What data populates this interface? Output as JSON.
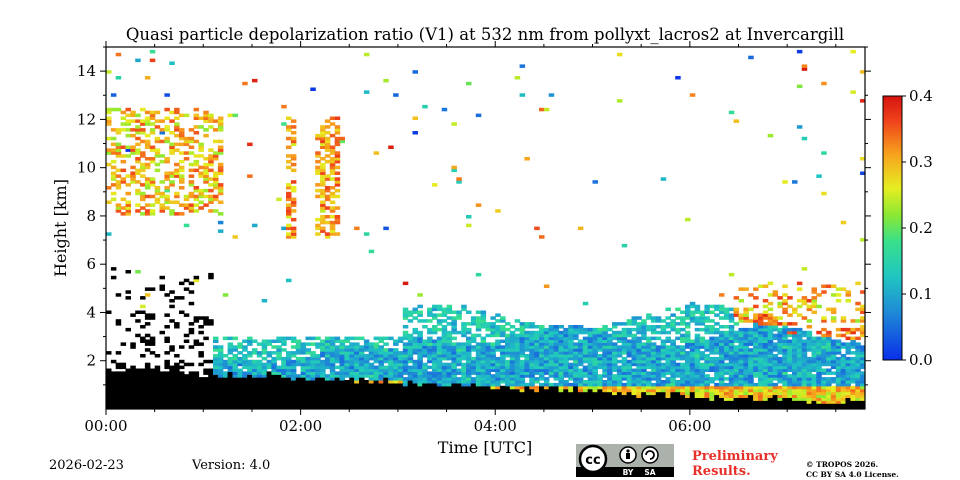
{
  "chart_data": {
    "type": "heatmap",
    "title": "Quasi particle depolarization ratio (V1) at 532 nm from pollyxt_lacros2 at Invercargill",
    "xlabel": "Time [UTC]",
    "ylabel": "Height [km]",
    "xlim_hours": [
      0,
      7.8
    ],
    "ylim_km": [
      0,
      15
    ],
    "x_ticks": [
      {
        "value": 0,
        "label": "00:00"
      },
      {
        "value": 2,
        "label": "02:00"
      },
      {
        "value": 4,
        "label": "04:00"
      },
      {
        "value": 6,
        "label": "06:00"
      }
    ],
    "y_ticks": [
      {
        "value": 2,
        "label": "2"
      },
      {
        "value": 4,
        "label": "4"
      },
      {
        "value": 6,
        "label": "6"
      },
      {
        "value": 8,
        "label": "8"
      },
      {
        "value": 10,
        "label": "10"
      },
      {
        "value": 12,
        "label": "12"
      },
      {
        "value": 14,
        "label": "14"
      }
    ],
    "colorbar": {
      "min": 0.0,
      "max": 0.4,
      "ticks": [
        {
          "value": 0.0,
          "label": "0.0"
        },
        {
          "value": 0.1,
          "label": "0.1"
        },
        {
          "value": 0.2,
          "label": "0.2"
        },
        {
          "value": 0.3,
          "label": "0.3"
        },
        {
          "value": 0.4,
          "label": "0.4"
        }
      ],
      "colormap": "jet"
    },
    "features": [
      {
        "name": "surface-blackout",
        "t": [
          0,
          7.8
        ],
        "h_top": [
          1.6,
          0.2
        ]
      },
      {
        "name": "boundary-layer-aerosol",
        "t": [
          1.1,
          7.8
        ],
        "h": [
          0.4,
          3.5
        ],
        "value": 0.12
      },
      {
        "name": "elevated-aerosol-layer",
        "t": [
          1.1,
          7.8
        ],
        "h": [
          2.5,
          4.6
        ],
        "value": 0.1
      },
      {
        "name": "high-cirrus-early",
        "t": [
          0.0,
          1.2
        ],
        "h": [
          8.0,
          12.4
        ],
        "value": 0.32
      },
      {
        "name": "cirrus-filaments",
        "t": [
          1.7,
          2.4
        ],
        "h": [
          7.0,
          12.0
        ],
        "value": 0.3
      },
      {
        "name": "cloud-tops-late",
        "t": [
          6.4,
          7.8
        ],
        "h": [
          3.5,
          5.2
        ],
        "value": 0.3
      }
    ]
  },
  "colors": {
    "background": "#ffffff",
    "axis": "#000000",
    "prelim_text": "#e8302a"
  },
  "footer": {
    "date": "2026-02-23",
    "version": "Version: 4.0",
    "preliminary_line1": "Preliminary",
    "preliminary_line2": "Results.",
    "copyright_line1": "© TROPOS 2026.",
    "copyright_line2": "CC BY SA 4.0 License.",
    "cc_badge": {
      "cc": "cc",
      "by": "BY",
      "sa": "SA"
    }
  }
}
